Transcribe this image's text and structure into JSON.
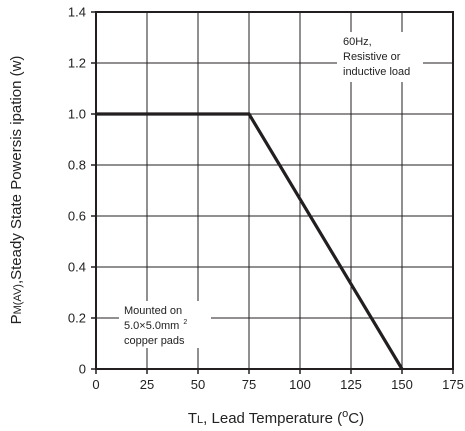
{
  "chart_data": {
    "type": "line",
    "title": "",
    "xlabel": {
      "main": "T",
      "sub": "L",
      "rest": ", Lead Temperature (",
      "degree": "o",
      "unit": "C)"
    },
    "ylabel": {
      "main": "P",
      "sub": "M(AV)",
      "rest": ",Steady State Powersis ipation (w)"
    },
    "xlim": [
      0,
      175
    ],
    "ylim": [
      0,
      1.4
    ],
    "x_ticks": [
      0,
      25,
      50,
      75,
      100,
      125,
      150,
      175
    ],
    "x_tick_labels": [
      "0",
      "25",
      "50",
      "75",
      "100",
      "125",
      "150",
      "175"
    ],
    "y_ticks": [
      0,
      0.2,
      0.4,
      0.6,
      0.8,
      1.0,
      1.2,
      1.4
    ],
    "y_tick_labels": [
      "0",
      "0.2",
      "0.4",
      "0.6",
      "0.8",
      "1.0",
      "1.2",
      "1.4"
    ],
    "grid": true,
    "series": [
      {
        "x": [
          0,
          75,
          150
        ],
        "y": [
          1.0,
          1.0,
          0.0
        ]
      }
    ],
    "annotations": {
      "top_right": [
        "60Hz,",
        "Resistive or",
        "inductive load"
      ],
      "bottom_left": {
        "line1": "Mounted on",
        "line2": "5.0×5.0mm",
        "line2_sup": "2",
        "line3": "copper pads"
      }
    },
    "colors": {
      "line": "#231f20",
      "grid": "#231f20",
      "frame": "#231f20"
    }
  }
}
